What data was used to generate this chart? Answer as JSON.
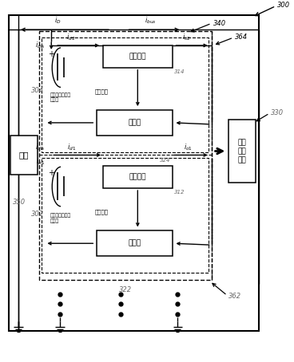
{
  "bg_color": "#ffffff",
  "black": "#000000",
  "gray": "#666666",
  "label_300": "300",
  "label_340": "340",
  "label_364": "364",
  "label_330": "330",
  "label_350": "350",
  "label_302": "302",
  "label_304": "304",
  "label_312": "312",
  "label_314": "314",
  "label_322": "322",
  "label_324": "324",
  "label_362": "362",
  "text_fuzai": "负载",
  "text_junheng_dianlu": "均衡电路",
  "text_danpinji": "单片机",
  "text_kongzhi": "控制信号",
  "text_dianchi_upper": "电池及均衡模块\n的信息",
  "text_dianchi_lower": "电池及均衡模块\n的信息",
  "text_junheng_mgmt": "均衡\n管理\n模块"
}
